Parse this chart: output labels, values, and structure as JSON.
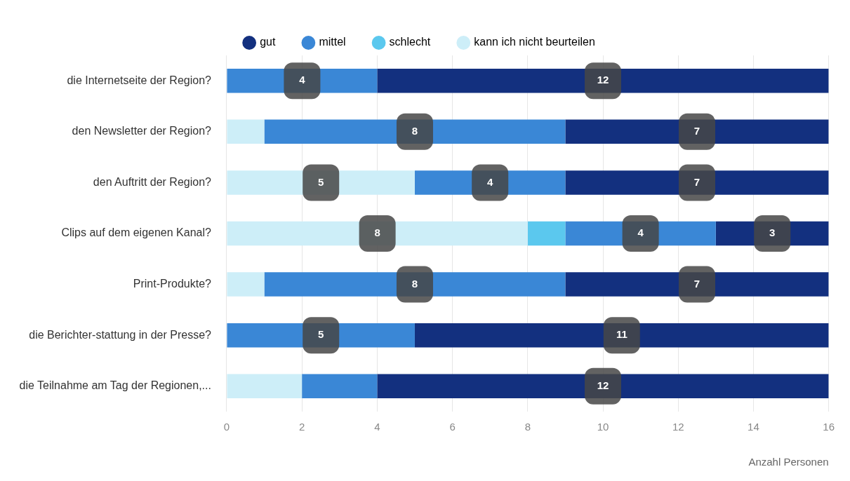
{
  "chart_data": {
    "type": "bar",
    "orientation": "horizontal",
    "stacked": true,
    "xlabel": "Anzahl Personen",
    "categories": [
      "die Internetseite der Region?",
      "den Newsletter der Region?",
      "den Auftritt der Region?",
      "Clips auf dem eigenen Kanal?",
      "Print-Produkte?",
      "die Berichter-stattung in der Presse?",
      "die Teilnahme am Tag der Regionen,..."
    ],
    "series": [
      {
        "name": "kann ich nicht beurteilen",
        "color": "#cdeef8",
        "values": [
          0,
          1,
          5,
          8,
          1,
          0,
          2
        ],
        "value_labels": [
          null,
          null,
          "5",
          "8",
          null,
          null,
          null
        ]
      },
      {
        "name": "schlecht",
        "color": "#5bc8ee",
        "values": [
          0,
          0,
          0,
          1,
          0,
          0,
          0
        ],
        "value_labels": [
          null,
          null,
          null,
          null,
          null,
          null,
          null
        ]
      },
      {
        "name": "mittel",
        "color": "#3a87d6",
        "values": [
          4,
          8,
          4,
          4,
          8,
          5,
          2
        ],
        "value_labels": [
          "4",
          "8",
          "4",
          "4",
          "8",
          "5",
          null
        ]
      },
      {
        "name": "gut",
        "color": "#13307f",
        "values": [
          12,
          7,
          7,
          3,
          7,
          11,
          12
        ],
        "value_labels": [
          "12",
          "7",
          "7",
          "3",
          "7",
          "11",
          "12"
        ]
      }
    ],
    "xlim": [
      0,
      16
    ],
    "xticks": [
      0,
      2,
      4,
      6,
      8,
      10,
      12,
      14,
      16
    ],
    "grid": "x",
    "legend": "top"
  }
}
